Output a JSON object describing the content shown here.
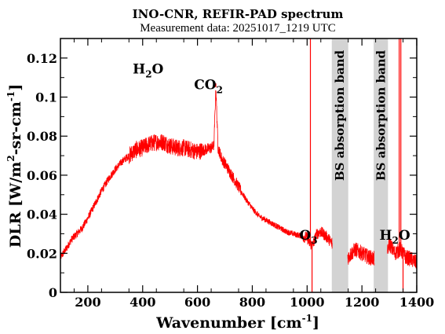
{
  "chart_data": {
    "type": "line",
    "title": "INO-CNR, REFIR-PAD spectrum",
    "subtitle": "Measurement data: 20251017_1219 UTC",
    "xlabel": "Wavenumber [cm-1]",
    "ylabel": "DLR [W/m2-sr-cm-1]",
    "xlim": [
      100,
      1400
    ],
    "ylim": [
      0,
      0.13
    ],
    "xticks": [
      "200",
      "400",
      "600",
      "800",
      "1000",
      "1200",
      "1400"
    ],
    "yticks": [
      "0",
      "0.02",
      "0.04",
      "0.06",
      "0.08",
      "0.1",
      "0.12"
    ],
    "grid": false,
    "series": [
      {
        "color": "#ff0000",
        "x": [
          100,
          120,
          140,
          160,
          180,
          200,
          225,
          250,
          275,
          300,
          325,
          350,
          375,
          400,
          425,
          450,
          475,
          500,
          525,
          550,
          575,
          600,
          625,
          650,
          660,
          667,
          675,
          690,
          700,
          725,
          750,
          775,
          800,
          825,
          850,
          875,
          900,
          925,
          950,
          975,
          1000,
          1010,
          1020,
          1035,
          1050,
          1075,
          1090,
          1150,
          1175,
          1200,
          1225,
          1250,
          1290,
          1300,
          1320,
          1340,
          1360,
          1380,
          1400
        ],
        "y": [
          0.018,
          0.022,
          0.027,
          0.03,
          0.033,
          0.038,
          0.045,
          0.052,
          0.058,
          0.063,
          0.067,
          0.07,
          0.073,
          0.074,
          0.076,
          0.077,
          0.077,
          0.075,
          0.074,
          0.074,
          0.073,
          0.072,
          0.073,
          0.074,
          0.075,
          0.105,
          0.074,
          0.068,
          0.066,
          0.06,
          0.054,
          0.048,
          0.043,
          0.039,
          0.037,
          0.035,
          0.033,
          0.031,
          0.03,
          0.029,
          0.028,
          0.025,
          0.024,
          0.03,
          0.031,
          0.028,
          0.025,
          0.018,
          0.022,
          0.02,
          0.018,
          0.017,
          0.018,
          0.025,
          0.02,
          0.022,
          0.018,
          0.017,
          0.015
        ]
      }
    ],
    "spikes": [
      {
        "x": 667,
        "y": 0.107
      },
      {
        "x": 1012,
        "y": 0.13
      },
      {
        "x": 1018,
        "y": 0.0
      },
      {
        "x": 1336,
        "y": 0.13
      },
      {
        "x": 1342,
        "y": 0.13
      },
      {
        "x": 1350,
        "y": 0.0
      }
    ],
    "bands": [
      {
        "label": "BS absorption band",
        "x0": 1090,
        "x1": 1150,
        "color": "#d3d3d3"
      },
      {
        "label": "BS absorption band",
        "x0": 1243,
        "x1": 1295,
        "color": "#d3d3d3"
      }
    ],
    "annotations": [
      {
        "base": "H",
        "sub": "2",
        "rest": "O",
        "x": 420,
        "y": 0.112
      },
      {
        "base": "CO",
        "sub": "2",
        "rest": "",
        "x": 640,
        "y": 0.104
      },
      {
        "base": "O",
        "sub": "3",
        "rest": "",
        "x": 1005,
        "y": 0.027
      },
      {
        "base": "H",
        "sub": "2",
        "rest": "O",
        "x": 1320,
        "y": 0.027
      }
    ]
  }
}
